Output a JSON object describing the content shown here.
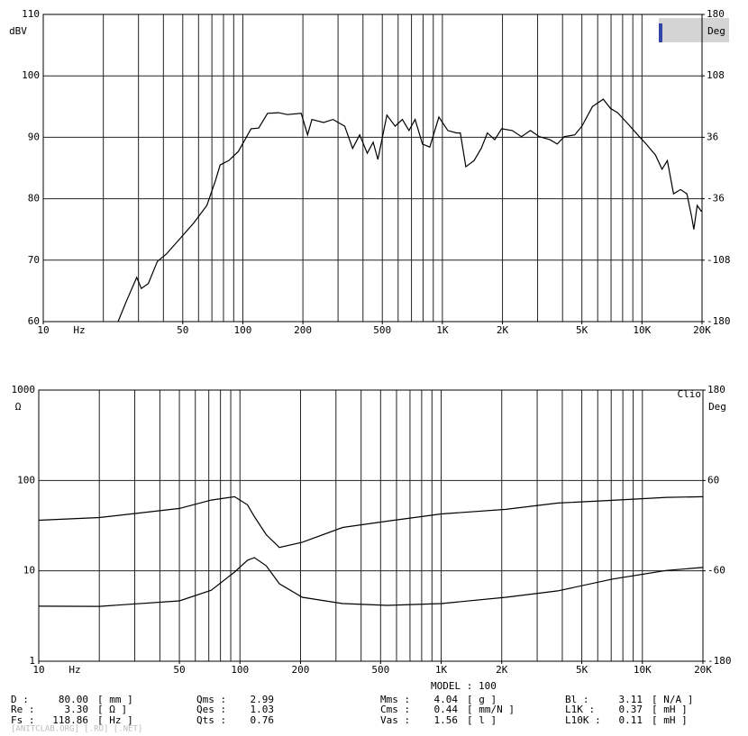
{
  "chart_data": [
    {
      "type": "line",
      "xscale": "log",
      "xlim": [
        10,
        20000
      ],
      "ylim": [
        60,
        110
      ],
      "y2lim": [
        -180,
        180
      ],
      "xticks": [
        10,
        50,
        100,
        200,
        500,
        {
          "value": 1000,
          "label": "1K"
        },
        {
          "value": 2000,
          "label": "2K"
        },
        {
          "value": 5000,
          "label": "5K"
        },
        {
          "value": 10000,
          "label": "10K"
        },
        {
          "value": 20000,
          "label": "20K"
        }
      ],
      "xgrid": [
        20,
        30,
        40,
        50,
        60,
        70,
        80,
        90,
        100,
        200,
        300,
        400,
        500,
        600,
        700,
        800,
        900,
        1000,
        2000,
        3000,
        4000,
        5000,
        6000,
        7000,
        8000,
        9000,
        10000
      ],
      "yticks": [
        60,
        70,
        80,
        90,
        100,
        110
      ],
      "y2ticks": [
        -180,
        -108,
        -36,
        36,
        108,
        180
      ],
      "xlabel": "Hz",
      "ylabel": "dBV",
      "y2label": "Deg",
      "grid": true,
      "color": "#000000",
      "x": [
        23.7,
        26,
        29.4,
        31,
        33.6,
        37.3,
        41.4,
        48.4,
        56.6,
        66,
        73,
        77,
        85,
        95,
        110,
        120,
        133,
        151,
        167,
        196,
        211,
        222,
        254,
        283,
        324,
        355,
        385,
        420,
        450,
        475,
        527,
        580,
        630,
        680,
        730,
        795,
        865,
        960,
        1064,
        1180,
        1230,
        1310,
        1440,
        1565,
        1680,
        1830,
        1980,
        2240,
        2490,
        2760,
        3060,
        3460,
        3760,
        4080,
        4600,
        5000,
        5650,
        6400,
        6950,
        7550,
        8560,
        9700,
        10500,
        11700,
        12600,
        13400,
        14400,
        15600,
        16800,
        17700,
        18200,
        18900,
        19900
      ],
      "values": [
        60,
        63.2,
        67.2,
        65.4,
        66.2,
        69.8,
        71,
        73.5,
        76,
        78.9,
        83,
        85.5,
        86.2,
        87.7,
        91.4,
        91.5,
        93.9,
        94,
        93.7,
        93.9,
        90.4,
        92.9,
        92.4,
        92.9,
        91.8,
        88.2,
        90.4,
        87.4,
        89.2,
        86.4,
        93.6,
        91.8,
        92.9,
        91.1,
        92.9,
        88.9,
        88.4,
        93.3,
        91.1,
        90.7,
        90.7,
        85.2,
        86.2,
        88.2,
        90.7,
        89.6,
        91.4,
        91.1,
        90.1,
        91.1,
        90.1,
        89.6,
        88.9,
        90.1,
        90.4,
        91.8,
        95,
        96.2,
        94.7,
        94,
        92.1,
        90.1,
        88.9,
        87.1,
        84.8,
        86.2,
        80.8,
        81.5,
        80.8,
        77.2,
        75,
        78.9,
        77.9
      ]
    },
    {
      "type": "line",
      "xscale": "log",
      "yscale": "log",
      "xlim": [
        10,
        20000
      ],
      "ylim": [
        1,
        1000
      ],
      "y2lim": [
        -180,
        180
      ],
      "xticks": [
        10,
        50,
        100,
        200,
        500,
        {
          "value": 1000,
          "label": "1K"
        },
        {
          "value": 2000,
          "label": "2K"
        },
        {
          "value": 5000,
          "label": "5K"
        },
        {
          "value": 10000,
          "label": "10K"
        },
        {
          "value": 20000,
          "label": "20K"
        }
      ],
      "xgrid": [
        20,
        30,
        40,
        50,
        60,
        70,
        80,
        90,
        100,
        200,
        300,
        400,
        500,
        600,
        700,
        800,
        900,
        1000,
        2000,
        3000,
        4000,
        5000,
        6000,
        7000,
        8000,
        9000,
        10000
      ],
      "yticks": [
        1,
        10,
        100,
        1000
      ],
      "y2ticks": [
        -180,
        -60,
        60,
        180
      ],
      "xlabel": "Hz",
      "ylabel": "Ω",
      "y2label": "Deg",
      "annotation": "Clio",
      "grid": true,
      "x": [
        10,
        20,
        50,
        72,
        94,
        109,
        118,
        135,
        157,
        204,
        324,
        540,
        1000,
        2100,
        3800,
        7100,
        13200,
        20000
      ],
      "series": [
        {
          "color": "#000000",
          "values": [
            4.06,
            4.05,
            4.65,
            6.1,
            9.7,
            13.1,
            14,
            11.4,
            7.2,
            5.1,
            4.34,
            4.15,
            4.34,
            5.1,
            6,
            8.1,
            10.1,
            10.9
          ]
        },
        {
          "color": "#000000",
          "axis": "y2",
          "values": [
            7.2,
            10.8,
            22.8,
            34,
            38.4,
            27.6,
            12,
            -12,
            -29,
            -22,
            -2.4,
            6,
            15.6,
            21.6,
            30,
            33.6,
            37.6,
            38.4
          ]
        }
      ]
    }
  ],
  "model": "MODEL : 100",
  "parameters": [
    [
      {
        "label": "D :",
        "value": "80.00",
        "unit": "[ mm ]"
      },
      {
        "label": "Re :",
        "value": "3.30",
        "unit": "[ Ω ]"
      },
      {
        "label": "Fs :",
        "value": "118.86",
        "unit": "[ Hz ]"
      }
    ],
    [
      {
        "label": "Qms :",
        "value": "2.99"
      },
      {
        "label": "Qes :",
        "value": "1.03"
      },
      {
        "label": "Qts :",
        "value": "0.76"
      }
    ],
    [
      {
        "label": "Mms :",
        "value": "4.04",
        "unit": "[ g ]"
      },
      {
        "label": "Cms :",
        "value": "0.44",
        "unit": "[ mm/N ]"
      },
      {
        "label": "Vas :",
        "value": "1.56",
        "unit": "[ l ]"
      }
    ],
    [
      {
        "label": "Bl :",
        "value": "3.11",
        "unit": "[ N/A ]"
      },
      {
        "label": "L1K :",
        "value": "0.37",
        "unit": "[ mH ]"
      },
      {
        "label": "L10K :",
        "value": "0.11",
        "unit": "[ mH ]"
      }
    ]
  ],
  "watermark": "[ANITCLAB.ORG] [.RU] [.NET]"
}
